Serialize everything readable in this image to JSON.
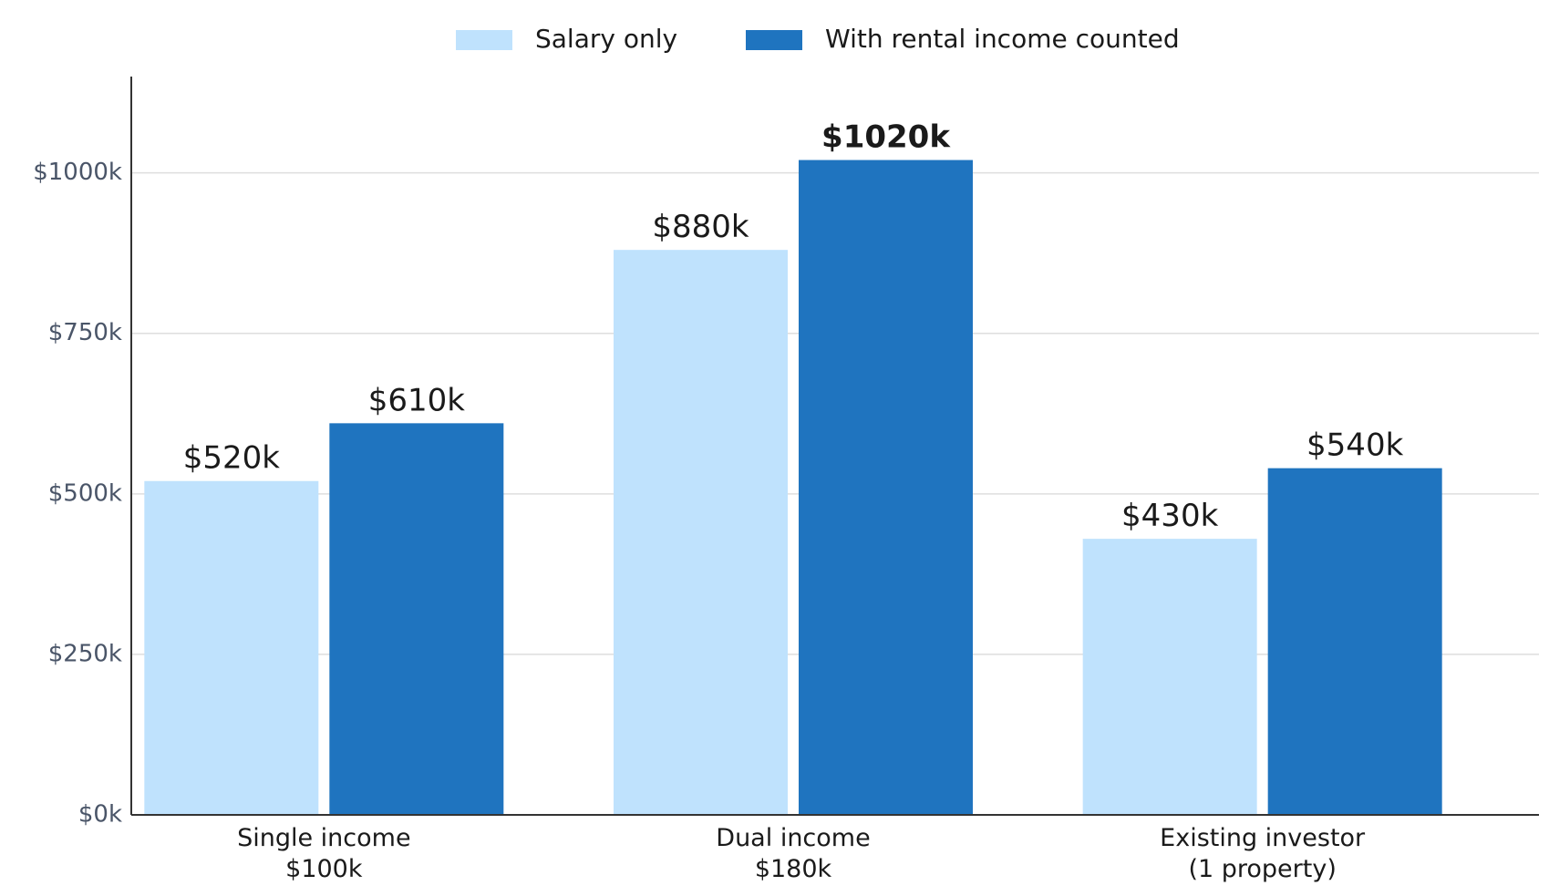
{
  "chart_data": {
    "type": "bar",
    "categories": [
      [
        "Single income",
        "$100k"
      ],
      [
        "Dual income",
        "$180k"
      ],
      [
        "Existing investor",
        "(1 property)"
      ]
    ],
    "series": [
      {
        "name": "Salary only",
        "values": [
          520,
          880,
          430
        ],
        "labels": [
          "$520k",
          "$880k",
          "$430k"
        ],
        "color": "#bfe2fd"
      },
      {
        "name": "With rental income counted",
        "values": [
          610,
          1020,
          540
        ],
        "labels": [
          "$610k",
          "$1020k",
          "$540k"
        ],
        "color": "#1f74bf"
      }
    ],
    "highlight": {
      "series": 1,
      "category": 1
    },
    "ylim": [
      0,
      1150
    ],
    "yticks": [
      0,
      250,
      500,
      750,
      1000
    ],
    "ytick_labels": [
      "$0k",
      "$250k",
      "$500k",
      "$750k",
      "$1000k"
    ],
    "grid": "horizontal",
    "legend_position": "top-center",
    "colors": {
      "axis": "#333333",
      "grid": "#dedede",
      "tick_text": "#4a5568",
      "text": "#1a1a1a"
    }
  }
}
